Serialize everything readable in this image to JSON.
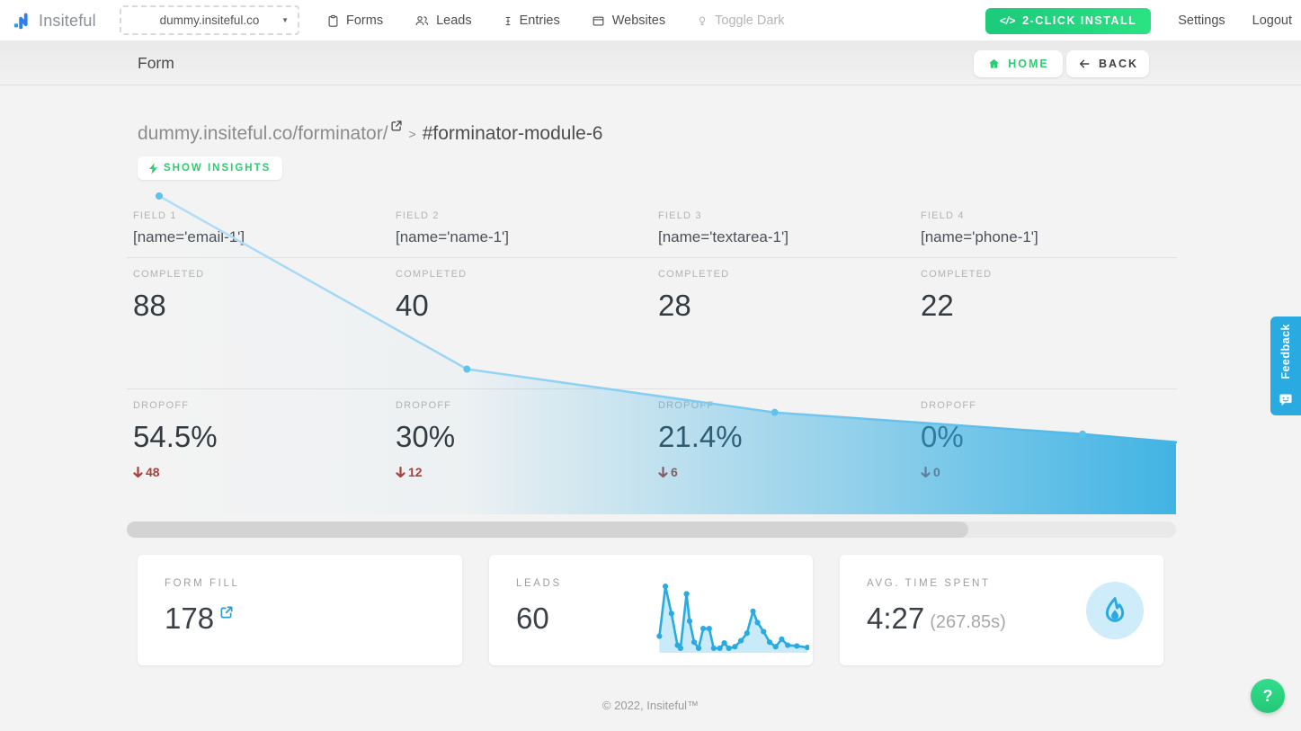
{
  "navbar": {
    "logo_text": "Insiteful",
    "site_selector_value": "dummy.insiteful.co",
    "items": [
      {
        "label": "Forms"
      },
      {
        "label": "Leads"
      },
      {
        "label": "Entries"
      },
      {
        "label": "Websites"
      },
      {
        "label": "Toggle Dark"
      }
    ],
    "install_button_icon": "</>",
    "install_button_label": "2-CLICK INSTALL",
    "settings_label": "Settings",
    "logout_label": "Logout"
  },
  "subheader": {
    "title": "Form",
    "home_label": "HOME",
    "back_label": "BACK"
  },
  "page": {
    "breadcrumb_url": "dummy.insiteful.co/forminator/",
    "breadcrumb_separator": ">",
    "breadcrumb_module": "#forminator-module-6",
    "insights_button_label": "SHOW INSIGHTS"
  },
  "funnel": {
    "columns": [
      {
        "field_label": "FIELD 1",
        "field_name": "[name='email-1']",
        "completed_label": "COMPLETED",
        "completed_value": "88",
        "dropoff_label": "DROPOFF",
        "dropoff_pct": "54.5%",
        "dropoff_count": "48"
      },
      {
        "field_label": "FIELD 2",
        "field_name": "[name='name-1']",
        "completed_label": "COMPLETED",
        "completed_value": "40",
        "dropoff_label": "DROPOFF",
        "dropoff_pct": "30%",
        "dropoff_count": "12"
      },
      {
        "field_label": "FIELD 3",
        "field_name": "[name='textarea-1']",
        "completed_label": "COMPLETED",
        "completed_value": "28",
        "dropoff_label": "DROPOFF",
        "dropoff_pct": "21.4%",
        "dropoff_count": "6"
      },
      {
        "field_label": "FIELD 4",
        "field_name": "[name='phone-1']",
        "completed_label": "COMPLETED",
        "completed_value": "22",
        "dropoff_label": "DROPOFF",
        "dropoff_pct": "0%",
        "dropoff_count": "0"
      }
    ]
  },
  "chart_data": [
    {
      "type": "area",
      "name": "form-funnel",
      "title": "Form field completion funnel",
      "categories": [
        "FIELD 1 [name='email-1']",
        "FIELD 2 [name='name-1']",
        "FIELD 3 [name='textarea-1']",
        "FIELD 4 [name='phone-1']"
      ],
      "values": [
        88,
        40,
        28,
        22
      ],
      "dropoff_pct": [
        54.5,
        30,
        21.4,
        0
      ],
      "dropoff_counts": [
        48,
        12,
        6,
        0
      ],
      "ylim": [
        0,
        88
      ],
      "grid": false,
      "legend": false
    },
    {
      "type": "line",
      "name": "leads-sparkline",
      "title": "Leads over time",
      "points": [
        [
          2,
          22
        ],
        [
          6,
          88
        ],
        [
          10,
          52
        ],
        [
          14,
          10
        ],
        [
          16,
          6
        ],
        [
          20,
          78
        ],
        [
          22,
          42
        ],
        [
          25,
          14
        ],
        [
          28,
          6
        ],
        [
          31,
          32
        ],
        [
          35,
          32
        ],
        [
          38,
          6
        ],
        [
          42,
          6
        ],
        [
          45,
          13
        ],
        [
          48,
          6
        ],
        [
          52,
          8
        ],
        [
          56,
          16
        ],
        [
          60,
          26
        ],
        [
          64,
          55
        ],
        [
          67,
          40
        ],
        [
          71,
          28
        ],
        [
          75,
          14
        ],
        [
          79,
          8
        ],
        [
          83,
          18
        ],
        [
          87,
          10
        ],
        [
          93,
          9
        ],
        [
          100,
          7
        ]
      ],
      "ylim": [
        0,
        100
      ],
      "grid": false,
      "legend": false
    }
  ],
  "cards": {
    "form_fill": {
      "label": "FORM FILL",
      "value": "178"
    },
    "leads": {
      "label": "LEADS",
      "value": "60"
    },
    "avg_time": {
      "label": "AVG. TIME SPENT",
      "value": "4:27",
      "seconds": "(267.85s)"
    }
  },
  "footer": {
    "copyright": "© 2022, Insiteful™"
  },
  "feedback_tab_label": "Feedback",
  "help_button_label": "?",
  "colors": {
    "accent_green": "#2ecc71",
    "install_green": "#23d77f",
    "accent_blue": "#29abe2",
    "logo_blue": "#2f80ed",
    "funnel_line_blue": "#8fd2f4",
    "dropoff_red": "#a4423b",
    "page_bg": "#f3f3f3"
  }
}
